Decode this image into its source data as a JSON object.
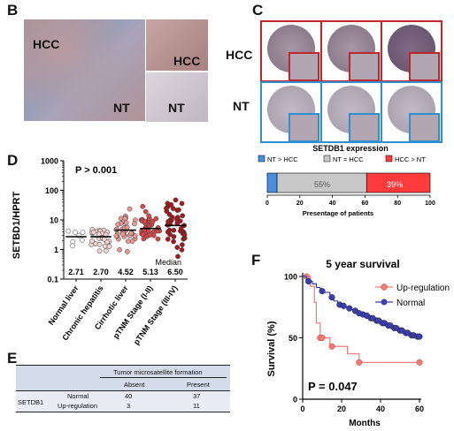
{
  "panels": {
    "B": "B",
    "C": "C",
    "D": "D",
    "E": "E",
    "F": "F"
  },
  "panelB": {
    "hcc_label": "HCC",
    "nt_label": "NT",
    "inset_hcc": "HCC",
    "inset_nt": "NT"
  },
  "panelC": {
    "hcc_row_label": "HCC",
    "nt_row_label": "NT",
    "colors": {
      "red": "#c0272d",
      "blue": "#2f8fd0"
    },
    "chart_data": {
      "type": "bar",
      "title": "SETDB1 expression",
      "legend": [
        {
          "name": "NT > HCC",
          "color": "#4a8fe0"
        },
        {
          "name": "NT = HCC",
          "color": "#c8c8c8"
        },
        {
          "name": "HCC > NT",
          "color": "#ff3b3b"
        }
      ],
      "series": [
        {
          "name": "NT > HCC",
          "value": 6
        },
        {
          "name": "NT = HCC",
          "value": 55
        },
        {
          "name": "HCC > NT",
          "value": 39
        }
      ],
      "labels": [
        "55%",
        "39%"
      ],
      "xlabel": "Presentage of patients",
      "xticks": [
        "0",
        "20",
        "40",
        "60",
        "80",
        "100"
      ],
      "xlim": [
        0,
        100
      ]
    }
  },
  "panelD": {
    "chart_data": {
      "type": "scatter",
      "ylabel": "SETBD1/HPRT",
      "yscale": "log",
      "ylim": [
        0.1,
        1000
      ],
      "yticks": [
        "0.1",
        "1",
        "10",
        "100",
        "1000"
      ],
      "annotation": "P > 0.001",
      "median_title": "Median",
      "categories": [
        "Normal liver",
        "Chronic hepatitis",
        "Cirrhotic liver",
        "pTNM Stage (I-II)",
        "pTNM Stage (III-IV)"
      ],
      "medians": [
        2.71,
        2.7,
        4.52,
        5.13,
        6.5
      ],
      "median_labels": [
        "2.71",
        "2.70",
        "4.52",
        "5.13",
        "6.50"
      ],
      "colors": [
        "#ffffff",
        "#f2d4d2",
        "#e79a93",
        "#d5484a",
        "#a31a1f"
      ]
    }
  },
  "panelE": {
    "header": "Tumor microsatellite formation",
    "col_absent": "Absent",
    "col_present": "Present",
    "row_label": "SETDB1",
    "rows": [
      {
        "name": "Normal",
        "absent": "40",
        "present": "37"
      },
      {
        "name": "Up-regulation",
        "absent": "3",
        "present": "11"
      }
    ]
  },
  "panelF": {
    "chart_data": {
      "type": "line",
      "title": "5 year survival",
      "xlabel": "Months",
      "ylabel": "Survival (%)",
      "xlim": [
        0,
        60
      ],
      "ylim": [
        0,
        100
      ],
      "xticks": [
        "0",
        "20",
        "40",
        "60"
      ],
      "yticks": [
        "0",
        "50",
        "100"
      ],
      "annotation": "P = 0.047",
      "series": [
        {
          "name": "Up-regulation",
          "color": "#f07a74",
          "steps": [
            [
              0,
              100
            ],
            [
              4,
              92
            ],
            [
              6,
              79
            ],
            [
              7,
              62
            ],
            [
              9,
              50
            ],
            [
              14,
              43
            ],
            [
              23,
              37
            ],
            [
              29,
              30
            ],
            [
              60,
              30
            ]
          ],
          "censor": [
            [
              2,
              100
            ],
            [
              9,
              50
            ],
            [
              10,
              50
            ],
            [
              15,
              43
            ],
            [
              29,
              30
            ],
            [
              60,
              30
            ]
          ]
        },
        {
          "name": "Normal",
          "color": "#3a3fb0",
          "steps": [
            [
              0,
              100
            ],
            [
              2,
              98
            ],
            [
              3,
              96
            ],
            [
              5,
              94
            ],
            [
              7,
              91
            ],
            [
              9,
              89
            ],
            [
              11,
              87
            ],
            [
              14,
              84
            ],
            [
              16,
              80
            ],
            [
              18,
              78
            ],
            [
              20,
              76
            ],
            [
              22,
              75
            ],
            [
              25,
              73
            ],
            [
              28,
              71
            ],
            [
              30,
              70
            ],
            [
              32,
              68
            ],
            [
              34,
              67
            ],
            [
              37,
              65
            ],
            [
              40,
              63
            ],
            [
              43,
              61
            ],
            [
              46,
              59
            ],
            [
              49,
              57
            ],
            [
              52,
              55
            ],
            [
              55,
              53
            ],
            [
              58,
              52
            ],
            [
              60,
              51
            ]
          ],
          "censor": [
            [
              3,
              96
            ],
            [
              10,
              88
            ],
            [
              15,
              83
            ],
            [
              19,
              77
            ],
            [
              21,
              76
            ],
            [
              24,
              74
            ],
            [
              27,
              72
            ],
            [
              29,
              70
            ],
            [
              31,
              69
            ],
            [
              33,
              68
            ],
            [
              35,
              66
            ],
            [
              36,
              66
            ],
            [
              38,
              64
            ],
            [
              39,
              64
            ],
            [
              41,
              62
            ],
            [
              42,
              62
            ],
            [
              44,
              60
            ],
            [
              45,
              60
            ],
            [
              47,
              58
            ],
            [
              48,
              58
            ],
            [
              50,
              56
            ],
            [
              51,
              56
            ],
            [
              53,
              54
            ],
            [
              54,
              54
            ],
            [
              56,
              52
            ],
            [
              57,
              52
            ],
            [
              59,
              51
            ],
            [
              60,
              51
            ]
          ]
        }
      ]
    }
  }
}
